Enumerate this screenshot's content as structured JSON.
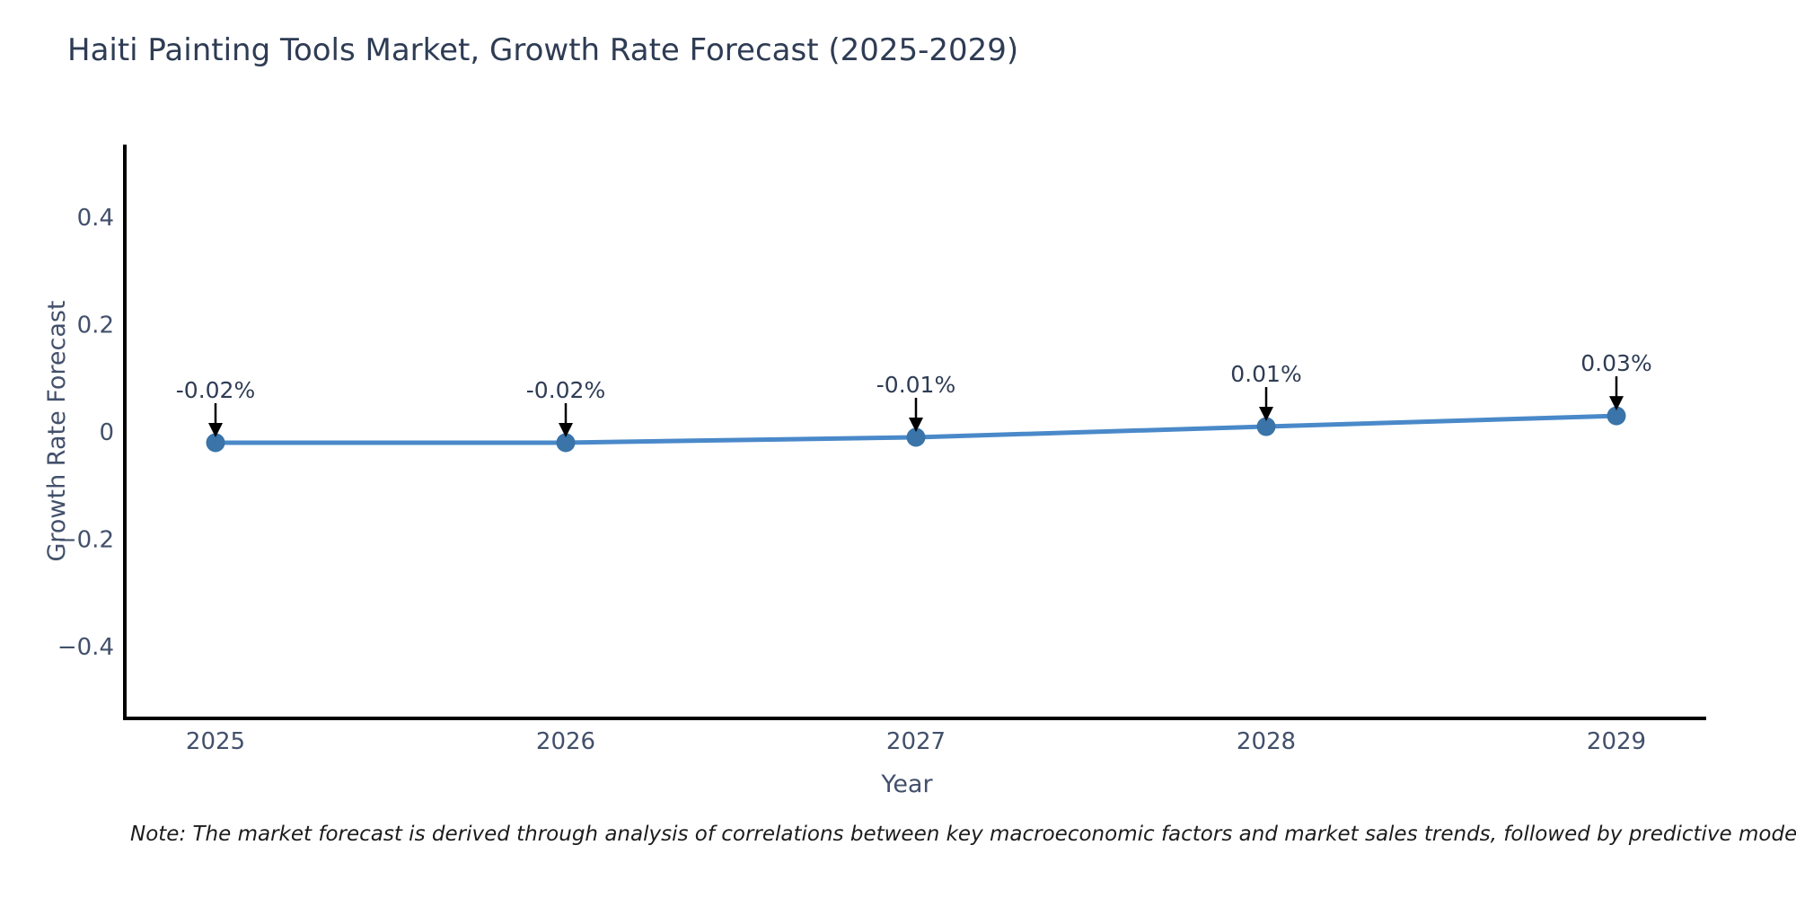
{
  "header": {
    "title": "Haiti Painting Tools Market, Growth Rate Forecast (2025-2029)"
  },
  "chart_data": {
    "type": "line",
    "title": "Haiti Painting Tools Market, Growth Rate Forecast (2025-2029)",
    "x": [
      "2025",
      "2026",
      "2027",
      "2028",
      "2029"
    ],
    "values": [
      -0.02,
      -0.02,
      -0.01,
      0.01,
      0.03
    ],
    "point_labels": [
      "-0.02%",
      "-0.02%",
      "-0.01%",
      "0.01%",
      "0.03%"
    ],
    "xlabel": "Year",
    "ylabel": "Growth Rate Forecast",
    "yticks": [
      {
        "label": "0.4",
        "value": 0.4
      },
      {
        "label": "0.2",
        "value": 0.2
      },
      {
        "label": "0",
        "value": 0
      },
      {
        "label": "−0.2",
        "value": -0.2
      },
      {
        "label": "−0.4",
        "value": -0.4
      }
    ],
    "ylim": [
      -0.535,
      0.535
    ],
    "grid": false,
    "legend": "none",
    "style": {
      "line_color": "#4a89c9",
      "marker_color": "#3a74a8",
      "axis_color": "#000000",
      "arrow_color": "#000000",
      "tick_color": "#42506b",
      "axis_title_color": "#42506b",
      "annotation_color": "#2e3c54"
    }
  },
  "footer": {
    "note": "Note: The market forecast is derived through analysis of correlations between key macroeconomic factors and market sales trends, followed by predictive modeling to project future sales"
  }
}
